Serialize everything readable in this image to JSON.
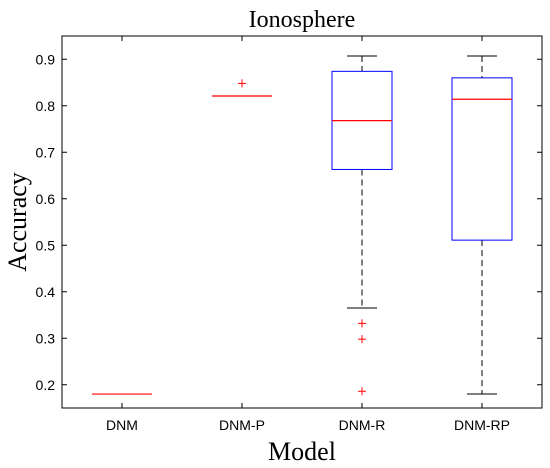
{
  "chart_data": {
    "type": "box",
    "title": "Ionosphere",
    "xlabel": "Model",
    "ylabel": "Accuracy",
    "ylim": [
      0.15,
      0.95
    ],
    "yticks": [
      0.2,
      0.3,
      0.4,
      0.5,
      0.6,
      0.7,
      0.8,
      0.9
    ],
    "ytick_labels": [
      "0.2",
      "0.3",
      "0.4",
      "0.5",
      "0.6",
      "0.7",
      "0.8",
      "0.9"
    ],
    "grid": false,
    "box_color": "#0000ff",
    "median_color": "#ff0000",
    "whisker_color": "#000000",
    "outlier_color": "#ff0000",
    "categories": [
      "DNM",
      "DNM-P",
      "DNM-R",
      "DNM-RP"
    ],
    "boxes": [
      {
        "category": "DNM",
        "whisker_low": 0.18,
        "q1": 0.18,
        "median": 0.18,
        "q3": 0.18,
        "whisker_high": 0.18,
        "outliers": []
      },
      {
        "category": "DNM-P",
        "whisker_low": 0.821,
        "q1": 0.821,
        "median": 0.821,
        "q3": 0.821,
        "whisker_high": 0.821,
        "outliers": [
          0.848
        ]
      },
      {
        "category": "DNM-R",
        "whisker_low": 0.365,
        "q1": 0.663,
        "median": 0.768,
        "q3": 0.874,
        "whisker_high": 0.907,
        "outliers": [
          0.332,
          0.298,
          0.186
        ]
      },
      {
        "category": "DNM-RP",
        "whisker_low": 0.18,
        "q1": 0.511,
        "median": 0.814,
        "q3": 0.86,
        "whisker_high": 0.907,
        "outliers": []
      }
    ]
  }
}
